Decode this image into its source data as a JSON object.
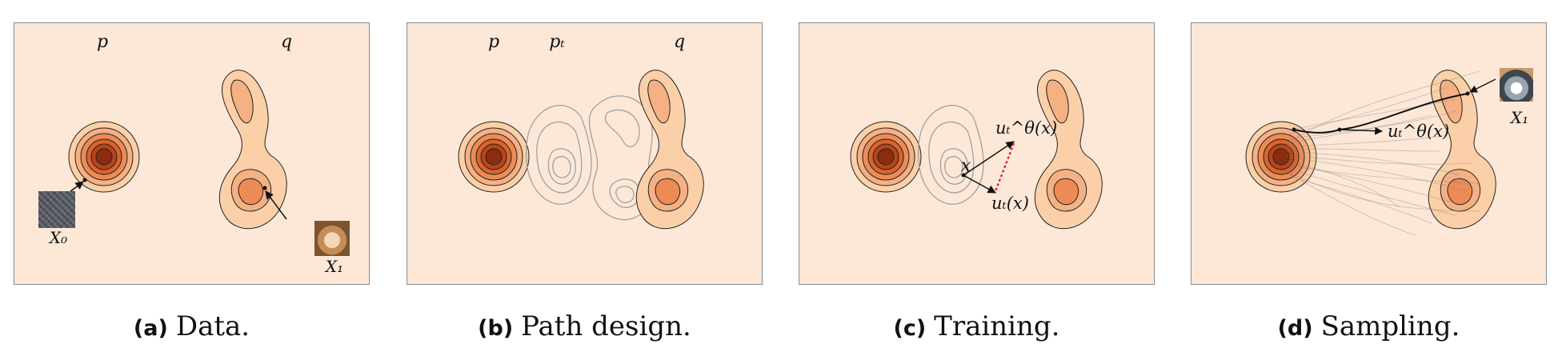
{
  "panels": [
    {
      "caption_tag": "(a)",
      "caption_text": "Data.",
      "labels": {
        "p": "p",
        "q": "q",
        "x0": "X₀",
        "x1": "X₁"
      }
    },
    {
      "caption_tag": "(b)",
      "caption_text": "Path design.",
      "labels": {
        "p": "p",
        "pt": "pₜ",
        "q": "q"
      }
    },
    {
      "caption_tag": "(c)",
      "caption_text": "Training.",
      "labels": {
        "x": "x",
        "u_theta": "uₜ^θ(x)",
        "u_t": "uₜ(x)"
      }
    },
    {
      "caption_tag": "(d)",
      "caption_text": "Sampling.",
      "labels": {
        "u_theta": "uₜ^θ(x)",
        "x1": "X₁"
      }
    }
  ],
  "colors": {
    "background": "#fde8d8",
    "contour_1": "#fbd0a8",
    "contour_2": "#f5b083",
    "contour_3": "#ec8b55",
    "contour_4": "#d9652d",
    "contour_5": "#b7441a",
    "contour_6": "#8c2c0e",
    "path_contour": "#9a9a9a",
    "arrow_red": "#e0102a"
  }
}
